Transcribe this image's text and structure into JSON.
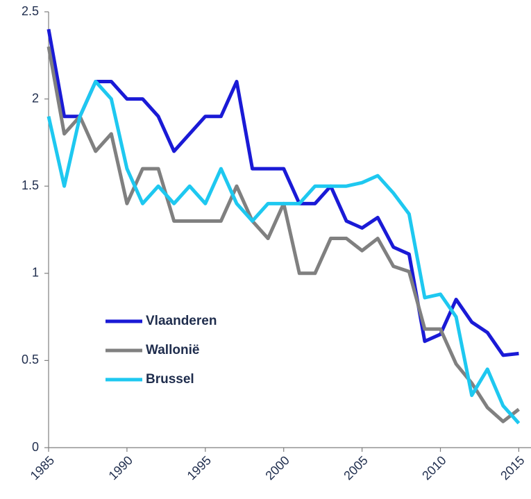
{
  "chart_data": {
    "type": "line",
    "x": [
      1985,
      1986,
      1987,
      1988,
      1989,
      1990,
      1991,
      1992,
      1993,
      1994,
      1995,
      1996,
      1997,
      1998,
      1999,
      2000,
      2001,
      2002,
      2003,
      2004,
      2005,
      2006,
      2007,
      2008,
      2009,
      2010,
      2011,
      2012,
      2013,
      2014,
      2015
    ],
    "series": [
      {
        "name": "Vlaanderen",
        "color": "#1a1ad6",
        "values": [
          2.4,
          1.9,
          1.9,
          2.1,
          2.1,
          2.0,
          2.0,
          1.9,
          1.7,
          1.8,
          1.9,
          1.9,
          2.1,
          1.6,
          1.6,
          1.6,
          1.4,
          1.4,
          1.5,
          1.3,
          1.26,
          1.32,
          1.15,
          1.11,
          0.61,
          0.65,
          0.85,
          0.72,
          0.66,
          0.53,
          0.54
        ]
      },
      {
        "name": "Wallonië",
        "color": "#808080",
        "values": [
          2.3,
          1.8,
          1.9,
          1.7,
          1.8,
          1.4,
          1.6,
          1.6,
          1.3,
          1.3,
          1.3,
          1.3,
          1.5,
          1.3,
          1.2,
          1.4,
          1.0,
          1.0,
          1.2,
          1.2,
          1.13,
          1.2,
          1.04,
          1.01,
          0.68,
          0.68,
          0.48,
          0.37,
          0.23,
          0.15,
          0.22
        ]
      },
      {
        "name": "Brussel",
        "color": "#1ec8f0",
        "values": [
          1.9,
          1.5,
          1.9,
          2.1,
          2.0,
          1.6,
          1.4,
          1.5,
          1.4,
          1.5,
          1.4,
          1.6,
          1.4,
          1.3,
          1.4,
          1.4,
          1.4,
          1.5,
          1.5,
          1.5,
          1.52,
          1.56,
          1.46,
          1.34,
          0.86,
          0.88,
          0.75,
          0.3,
          0.45,
          0.24,
          0.14
        ]
      }
    ],
    "xlim": [
      1985,
      2016
    ],
    "xticks": [
      1985,
      1990,
      1995,
      2000,
      2005,
      2010,
      2015
    ],
    "ylim": [
      0,
      2.5
    ],
    "yticks": [
      0,
      0.5,
      1,
      1.5,
      2,
      2.5
    ],
    "grid": false,
    "legend": "left"
  }
}
